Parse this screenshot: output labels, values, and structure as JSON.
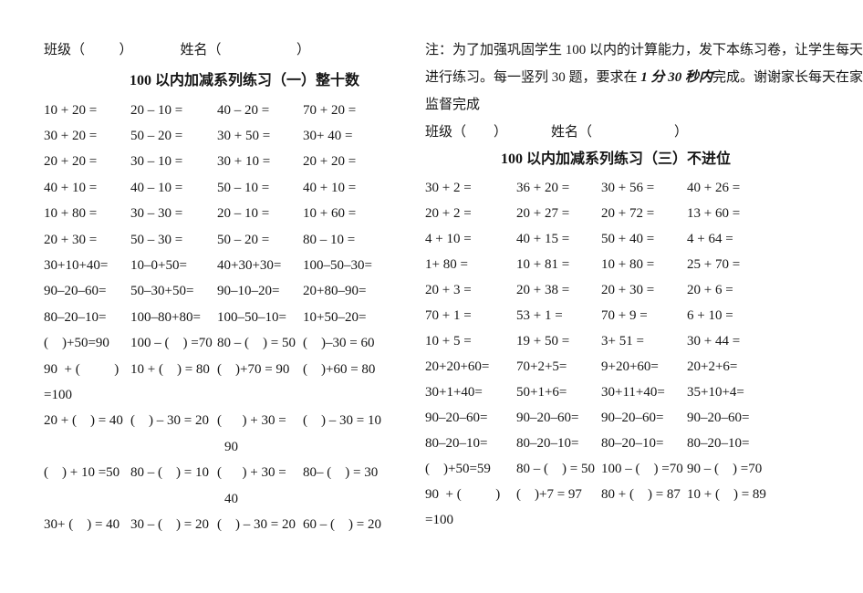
{
  "document": {
    "colors": {
      "text": "#161616",
      "background": "#ffffff"
    },
    "left_page": {
      "header": {
        "class_field": "班级（          ）",
        "name_field": "姓名（                      ）"
      },
      "title": "100 以内加减系列练习（一）整十数",
      "rows": [
        {
          "cells": [
            "10 + 20 =",
            "20 – 10 =",
            "40 – 20 =",
            "70 + 20 ="
          ]
        },
        {
          "cells": [
            "30 + 20 =",
            "50 – 20 =",
            "30 + 50 =",
            "30+ 40 ="
          ]
        },
        {
          "cells": [
            "20 + 20 =",
            "30 – 10 =",
            "30 + 10 =",
            "20 + 20 ="
          ]
        },
        {
          "cells": [
            "40 + 10 =",
            "40 – 10 =",
            "50 – 10 =",
            "40 + 10 ="
          ]
        },
        {
          "cells": [
            "10 + 80 =",
            "30 – 30 =",
            "20 – 10 =",
            "10 + 60 ="
          ]
        },
        {
          "cells": [
            "20 + 30 =",
            "50 – 30 =",
            "50 – 20 =",
            "80 – 10 ="
          ]
        },
        {
          "cells": [
            "30+10+40=",
            "10–0+50=",
            "40+30+30=",
            "100–50–30="
          ]
        },
        {
          "cells": [
            "90–20–60=",
            "50–30+50=",
            "90–10–20=",
            "20+80–90="
          ]
        },
        {
          "cells": [
            "80–20–10=",
            "100–80+80=",
            "100–50–10=",
            "10+50–20="
          ]
        },
        {
          "cells": [
            "(    )+50=90",
            "100 – (    ) =70",
            "80 – (    ) = 50",
            "(    )–30 = 60"
          ]
        },
        {
          "cells": [
            "90  + (          )",
            "10 + (    ) = 80",
            "(    )+70 = 90",
            "(    )+60 = 80"
          ]
        },
        {
          "cont": "=100",
          "indent": 0
        },
        {
          "cells": [
            "20 + (    ) = 40",
            "(    ) – 30 = 20",
            "(      ) + 30 =",
            "(    ) – 30 = 10"
          ]
        },
        {
          "cont": "90",
          "indent": 198
        },
        {
          "cells": [
            "(    ) + 10 =50",
            "80 – (    ) = 10",
            "(      ) + 30 =",
            "80– (    ) = 30"
          ]
        },
        {
          "cont": "40",
          "indent": 198
        },
        {
          "cells": [
            "30+ (    ) = 40",
            "30 – (    ) = 20",
            "(    ) – 30 = 20",
            "60 – (    ) = 20"
          ]
        }
      ]
    },
    "right_page": {
      "note": {
        "line1": "注：为了加强巩固学生 100 以内的计算能力，发下本练习卷，让学生每天",
        "line2_pre": "进行练习。每一竖列 30 题，要求在 ",
        "line2_bold": "1 分 30 秒内",
        "line2_post": "完成。谢谢家长每天在家",
        "line3": "监督完成"
      },
      "header": {
        "class_field": "班级（        ）",
        "name_field": "姓名（                        ）"
      },
      "title": "100 以内加减系列练习（三）不进位",
      "rows": [
        {
          "cells": [
            "30 + 2 =",
            "36 + 20 =",
            "30 + 56 =",
            "40 + 26 ="
          ]
        },
        {
          "cells": [
            "20 + 2 =",
            "20 + 27 =",
            "20 + 72 =",
            "13 + 60 ="
          ]
        },
        {
          "cells": [
            "4 + 10 =",
            "40 + 15 =",
            "50 + 40 =",
            "4 + 64 ="
          ]
        },
        {
          "cells": [
            "1+ 80 =",
            "10 + 81 =",
            "10 + 80 =",
            "25 + 70 ="
          ]
        },
        {
          "cells": [
            "20 + 3 =",
            "20 + 38 =",
            "20 + 30 =",
            "20 + 6 ="
          ]
        },
        {
          "cells": [
            "70 + 1 =",
            "53 + 1 =",
            "70 + 9 =",
            "6 + 10 ="
          ]
        },
        {
          "cells": [
            "10 + 5 =",
            "19 + 50 =",
            "3+ 51 =",
            "30 + 44 ="
          ]
        },
        {
          "cells": [
            "20+20+60=",
            "70+2+5=",
            "9+20+60=",
            "20+2+6="
          ]
        },
        {
          "cells": [
            "30+1+40=",
            "50+1+6=",
            "30+11+40=",
            "35+10+4="
          ]
        },
        {
          "cells": [
            "90–20–60=",
            "90–20–60=",
            "90–20–60=",
            "90–20–60="
          ]
        },
        {
          "cells": [
            "80–20–10=",
            "80–20–10=",
            "80–20–10=",
            "80–20–10="
          ]
        },
        {
          "cells": [
            "(    )+50=59",
            "80 – (    ) = 50",
            "100 – (    ) =70",
            "90 – (    ) =70"
          ]
        },
        {
          "cells": [
            "90  + (          )",
            "(    )+7 = 97",
            "80 + (    ) = 87",
            "10 + (    ) = 89"
          ]
        },
        {
          "cont": "=100",
          "indent": 0
        }
      ]
    }
  }
}
